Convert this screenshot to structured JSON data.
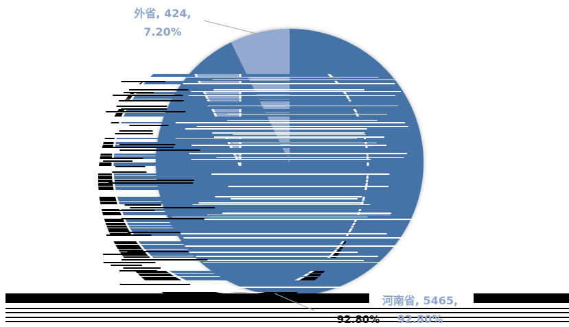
{
  "chart_data": {
    "type": "pie",
    "categories": [
      "河南省",
      "外省"
    ],
    "values": [
      5465,
      424
    ],
    "percentages": [
      "92.80%",
      "7.20%"
    ],
    "title": "",
    "legend": "none"
  },
  "colors": {
    "slices": [
      "#4572a7",
      "#93a9cf"
    ],
    "label": "#8ba5cd",
    "leader": "#a5a5a5"
  }
}
